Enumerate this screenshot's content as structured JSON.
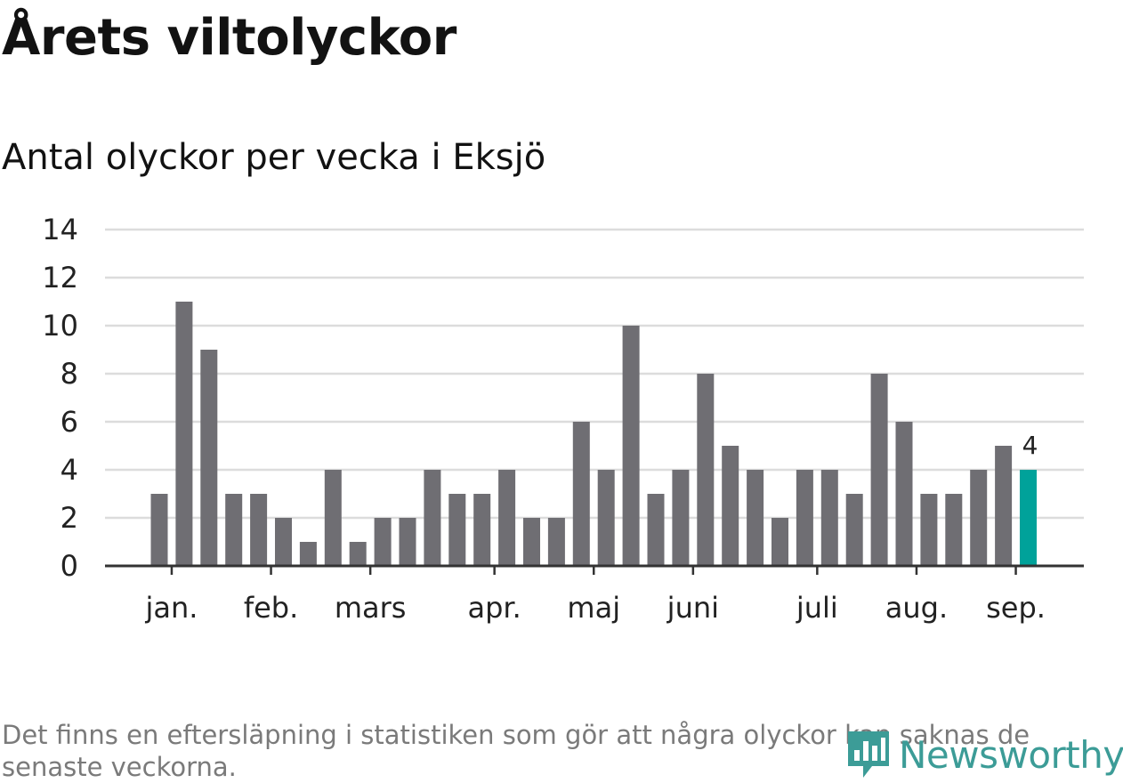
{
  "title": "Årets viltolyckor",
  "subtitle": "Antal olyckor per vecka i Eksjö",
  "footnote": "Det finns en eftersläpning i statistiken som gör att några olyckor kan saknas de senaste veckorna.",
  "logo": {
    "text": "Newsworthy",
    "icon": "newsworthy-chart-icon",
    "color": "#3c9c97"
  },
  "colors": {
    "bar": "#6f6e73",
    "highlight": "#00a29a",
    "grid": "#dcdcdc",
    "axis": "#333333"
  },
  "chart_data": {
    "type": "bar",
    "title": "Årets viltolyckor",
    "subtitle": "Antal olyckor per vecka i Eksjö",
    "xlabel": "",
    "ylabel": "",
    "ylim": [
      0,
      14
    ],
    "yticks": [
      0,
      2,
      4,
      6,
      8,
      10,
      12,
      14
    ],
    "grid": true,
    "x_tick_labels": [
      {
        "label": "jan.",
        "week_index": 0.5
      },
      {
        "label": "feb.",
        "week_index": 4.5
      },
      {
        "label": "mars",
        "week_index": 8.5
      },
      {
        "label": "apr.",
        "week_index": 13.5
      },
      {
        "label": "maj",
        "week_index": 17.5
      },
      {
        "label": "juni",
        "week_index": 21.5
      },
      {
        "label": "juli",
        "week_index": 26.5
      },
      {
        "label": "aug.",
        "week_index": 30.5
      },
      {
        "label": "sep.",
        "week_index": 34.5
      }
    ],
    "values": [
      3,
      11,
      9,
      3,
      3,
      2,
      1,
      4,
      1,
      2,
      2,
      4,
      3,
      3,
      4,
      2,
      2,
      6,
      4,
      10,
      3,
      4,
      8,
      5,
      4,
      2,
      4,
      4,
      3,
      8,
      6,
      3,
      3,
      4,
      5,
      4
    ],
    "highlight_index": 35,
    "highlight_label": "4"
  }
}
